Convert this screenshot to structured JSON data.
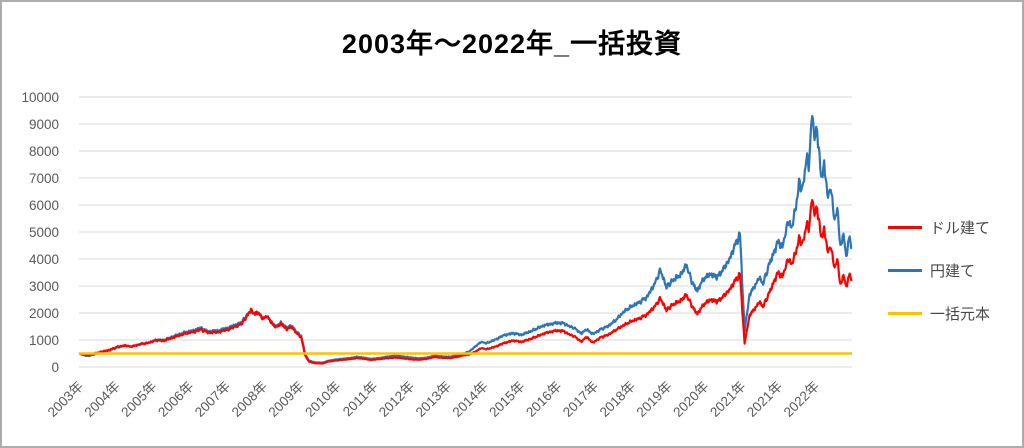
{
  "chart_data": {
    "type": "line",
    "title": "2003年〜2022年_一括投資",
    "xlabel": "",
    "ylabel": "",
    "ylim": [
      0,
      10000
    ],
    "y_ticks": [
      0,
      1000,
      2000,
      3000,
      4000,
      5000,
      6000,
      7000,
      8000,
      9000,
      10000
    ],
    "y_tick_labels": [
      "0",
      "1000",
      "2000",
      "3000",
      "4000",
      "5000",
      "6000",
      "7000",
      "8000",
      "9000",
      "10000"
    ],
    "x_range": [
      2003,
      2023
    ],
    "x_tick_labels": [
      "2003年",
      "2004年",
      "2005年",
      "2006年",
      "2007年",
      "2008年",
      "2009年",
      "2010年",
      "2011年",
      "2012年",
      "2013年",
      "2014年",
      "2015年",
      "2016年",
      "2017年",
      "2018年",
      "2019年",
      "2020年",
      "2021年",
      "2021年",
      "2022年"
    ],
    "grid": "horizontal",
    "legend_position": "right",
    "x": [
      2003.0,
      2003.1,
      2003.25,
      2003.45,
      2003.6,
      2003.8,
      2004.0,
      2004.2,
      2004.35,
      2004.6,
      2004.8,
      2005.0,
      2005.2,
      2005.45,
      2005.7,
      2006.0,
      2006.15,
      2006.35,
      2006.6,
      2006.85,
      2007.0,
      2007.2,
      2007.35,
      2007.45,
      2007.55,
      2007.63,
      2007.75,
      2007.85,
      2008.0,
      2008.1,
      2008.22,
      2008.38,
      2008.5,
      2008.63,
      2008.75,
      2008.85,
      2008.95,
      2009.1,
      2009.3,
      2009.45,
      2009.65,
      2009.85,
      2010.0,
      2010.2,
      2010.4,
      2010.55,
      2010.75,
      2011.0,
      2011.2,
      2011.45,
      2011.6,
      2011.8,
      2012.0,
      2012.2,
      2012.4,
      2012.6,
      2012.8,
      2012.95,
      2013.1,
      2013.25,
      2013.4,
      2013.55,
      2013.75,
      2014.0,
      2014.25,
      2014.45,
      2014.7,
      2015.0,
      2015.25,
      2015.5,
      2015.7,
      2015.85,
      2016.0,
      2016.12,
      2016.3,
      2016.5,
      2016.7,
      2016.9,
      2017.1,
      2017.3,
      2017.5,
      2017.7,
      2017.9,
      2018.05,
      2018.2,
      2018.35,
      2018.55,
      2018.72,
      2018.85,
      2019.0,
      2019.15,
      2019.35,
      2019.5,
      2019.65,
      2019.8,
      2020.0,
      2020.1,
      2020.22,
      2020.35,
      2020.5,
      2020.6,
      2020.7,
      2020.85,
      2021.0,
      2021.1,
      2021.2,
      2021.35,
      2021.45,
      2021.55,
      2021.65,
      2021.72,
      2021.82,
      2021.88,
      2021.97,
      2022.05,
      2022.1,
      2022.2,
      2022.28,
      2022.38,
      2022.45,
      2022.55,
      2022.62,
      2022.7,
      2022.78,
      2022.85,
      2022.92,
      2023.0
    ],
    "series": [
      {
        "name": "ドル建て",
        "color": "#FF0000",
        "values": [
          500,
          470,
          440,
          520,
          575,
          640,
          755,
          800,
          755,
          850,
          890,
          990,
          970,
          1100,
          1220,
          1310,
          1390,
          1270,
          1290,
          1390,
          1470,
          1590,
          1880,
          2130,
          1960,
          2050,
          1790,
          1890,
          1600,
          1460,
          1600,
          1400,
          1490,
          1250,
          1100,
          430,
          200,
          140,
          130,
          200,
          240,
          270,
          290,
          330,
          300,
          260,
          290,
          330,
          350,
          310,
          280,
          270,
          300,
          370,
          340,
          330,
          380,
          430,
          470,
          560,
          700,
          660,
          740,
          890,
          980,
          930,
          1050,
          1220,
          1330,
          1350,
          1200,
          1110,
          930,
          1120,
          900,
          1100,
          1200,
          1380,
          1550,
          1700,
          1800,
          1950,
          2250,
          2550,
          2100,
          2300,
          2450,
          2650,
          2300,
          1950,
          2300,
          2500,
          2400,
          2600,
          2800,
          3250,
          3450,
          880,
          1900,
          2200,
          2400,
          2250,
          2700,
          3250,
          3500,
          3350,
          4000,
          3800,
          4300,
          4800,
          4500,
          5300,
          5100,
          6250,
          5600,
          5900,
          4800,
          5100,
          4200,
          4500,
          3650,
          4000,
          3000,
          3450,
          2950,
          3400,
          3250
        ]
      },
      {
        "name": "円建て",
        "color": "#2E75B6",
        "values": [
          500,
          450,
          405,
          490,
          555,
          620,
          730,
          790,
          750,
          855,
          900,
          1010,
          1000,
          1140,
          1265,
          1370,
          1450,
          1320,
          1350,
          1450,
          1530,
          1650,
          1930,
          2080,
          1950,
          2020,
          1780,
          1870,
          1640,
          1500,
          1650,
          1450,
          1550,
          1300,
          1150,
          480,
          240,
          170,
          160,
          230,
          280,
          310,
          330,
          380,
          340,
          300,
          330,
          390,
          420,
          380,
          350,
          320,
          350,
          420,
          390,
          380,
          440,
          500,
          580,
          750,
          930,
          880,
          1000,
          1180,
          1250,
          1190,
          1330,
          1520,
          1610,
          1640,
          1500,
          1420,
          1230,
          1400,
          1220,
          1400,
          1520,
          1750,
          2050,
          2250,
          2400,
          2600,
          3100,
          3600,
          2950,
          3200,
          3400,
          3750,
          3200,
          2800,
          3250,
          3450,
          3300,
          3600,
          3900,
          4600,
          4950,
          1350,
          2650,
          3050,
          3300,
          3100,
          3750,
          4350,
          4650,
          4450,
          5400,
          5150,
          6000,
          6900,
          6500,
          7800,
          7400,
          9400,
          8400,
          8800,
          7000,
          7500,
          6200,
          6700,
          5400,
          5900,
          4400,
          5000,
          4050,
          4800,
          4400
        ]
      },
      {
        "name": "一括元本",
        "color": "#FFC000",
        "constant_value": 500
      }
    ]
  },
  "colors": {
    "gridline": "#D9D9D9",
    "axis_text": "#595959",
    "title_text": "#000000",
    "frame_border": "#ACACAC",
    "background": "#FFFFFF"
  }
}
